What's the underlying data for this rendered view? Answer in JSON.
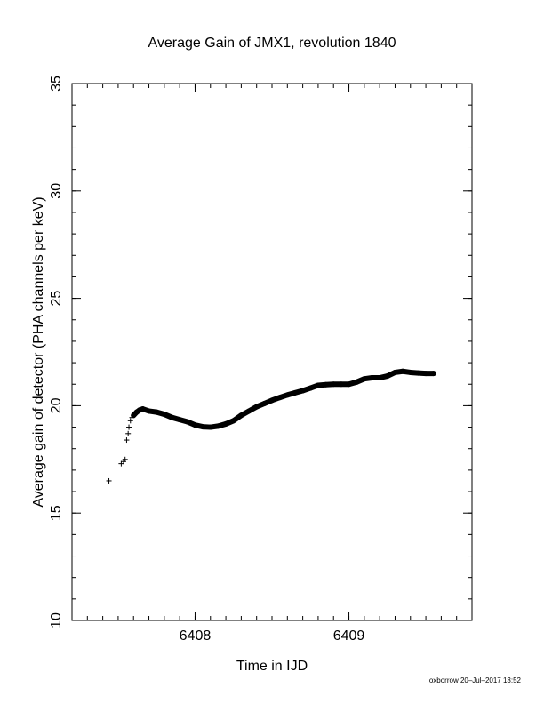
{
  "chart_data": {
    "type": "scatter",
    "title": "Average Gain of JMX1, revolution 1840",
    "xlabel": "Time in IJD",
    "ylabel": "Average gain of detector (PHA channels per keV)",
    "xlim": [
      6407.2,
      6409.8
    ],
    "ylim": [
      10,
      35
    ],
    "x_ticks": [
      6408,
      6409
    ],
    "x_minor_step": 0.1,
    "y_ticks": [
      10,
      15,
      20,
      25,
      30,
      35
    ],
    "y_minor_step": 1,
    "grid": false,
    "marker": "plus",
    "series": [
      {
        "x": [
          6407.44,
          6407.52,
          6407.535,
          6407.545,
          6407.555,
          6407.565,
          6407.57,
          6407.58,
          6407.59,
          6407.6,
          6407.62,
          6407.64,
          6407.66,
          6407.7,
          6407.75,
          6407.8,
          6407.85,
          6407.9,
          6407.95,
          6408.0,
          6408.05,
          6408.1,
          6408.15,
          6408.2,
          6408.25,
          6408.3,
          6408.35,
          6408.4,
          6408.45,
          6408.5,
          6408.55,
          6408.6,
          6408.65,
          6408.7,
          6408.75,
          6408.8,
          6408.85,
          6408.9,
          6408.95,
          6409.0,
          6409.05,
          6409.1,
          6409.15,
          6409.2,
          6409.25,
          6409.3,
          6409.35,
          6409.4,
          6409.45,
          6409.5,
          6409.55
        ],
        "y": [
          16.5,
          17.3,
          17.4,
          17.5,
          18.4,
          18.7,
          19.0,
          19.3,
          19.45,
          19.55,
          19.7,
          19.8,
          19.85,
          19.75,
          19.7,
          19.6,
          19.45,
          19.35,
          19.25,
          19.1,
          19.02,
          19.0,
          19.05,
          19.15,
          19.3,
          19.55,
          19.75,
          19.95,
          20.1,
          20.25,
          20.38,
          20.5,
          20.6,
          20.7,
          20.82,
          20.95,
          20.98,
          21.0,
          21.0,
          21.0,
          21.1,
          21.25,
          21.3,
          21.3,
          21.38,
          21.55,
          21.6,
          21.55,
          21.52,
          21.5,
          21.5
        ]
      }
    ]
  },
  "footer": {
    "stamp": "oxborrow 20–Jul–2017 13:52"
  }
}
